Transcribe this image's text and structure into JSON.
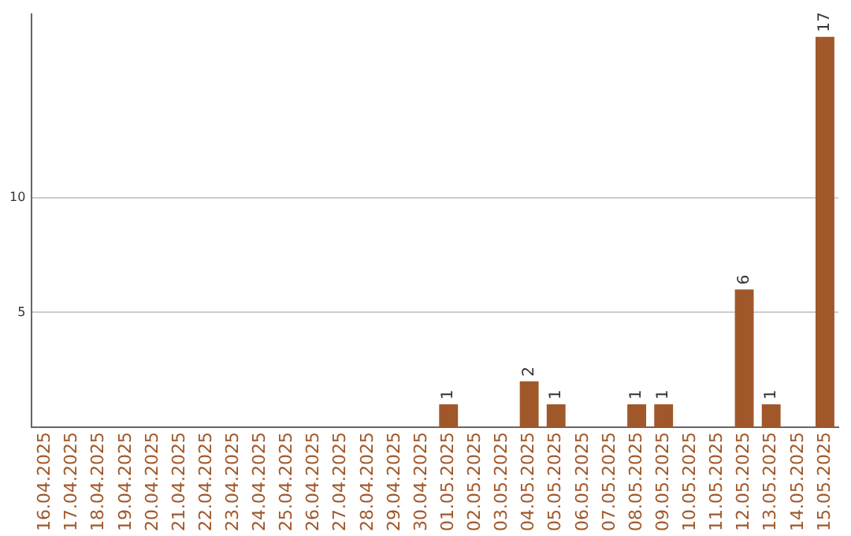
{
  "chart_data": {
    "type": "bar",
    "categories": [
      "16.04.2025",
      "17.04.2025",
      "18.04.2025",
      "19.04.2025",
      "20.04.2025",
      "21.04.2025",
      "22.04.2025",
      "23.04.2025",
      "24.04.2025",
      "25.04.2025",
      "26.04.2025",
      "27.04.2025",
      "28.04.2025",
      "29.04.2025",
      "30.04.2025",
      "01.05.2025",
      "02.05.2025",
      "03.05.2025",
      "04.05.2025",
      "05.05.2025",
      "06.05.2025",
      "07.05.2025",
      "08.05.2025",
      "09.05.2025",
      "10.05.2025",
      "11.05.2025",
      "12.05.2025",
      "13.05.2025",
      "14.05.2025",
      "15.05.2025"
    ],
    "values": [
      0,
      0,
      0,
      0,
      0,
      0,
      0,
      0,
      0,
      0,
      0,
      0,
      0,
      0,
      0,
      1,
      0,
      0,
      2,
      1,
      0,
      0,
      1,
      1,
      0,
      0,
      6,
      1,
      0,
      17
    ],
    "value_labels": [
      null,
      null,
      null,
      null,
      null,
      null,
      null,
      null,
      null,
      null,
      null,
      null,
      null,
      null,
      null,
      "1",
      null,
      null,
      "2",
      "1",
      null,
      null,
      "1",
      "1",
      null,
      null,
      "6",
      "1",
      null,
      "17"
    ],
    "color": "#a0582a",
    "ylim": [
      0,
      18
    ],
    "yticks": [
      5,
      10
    ],
    "grid": "y",
    "legend": false
  }
}
